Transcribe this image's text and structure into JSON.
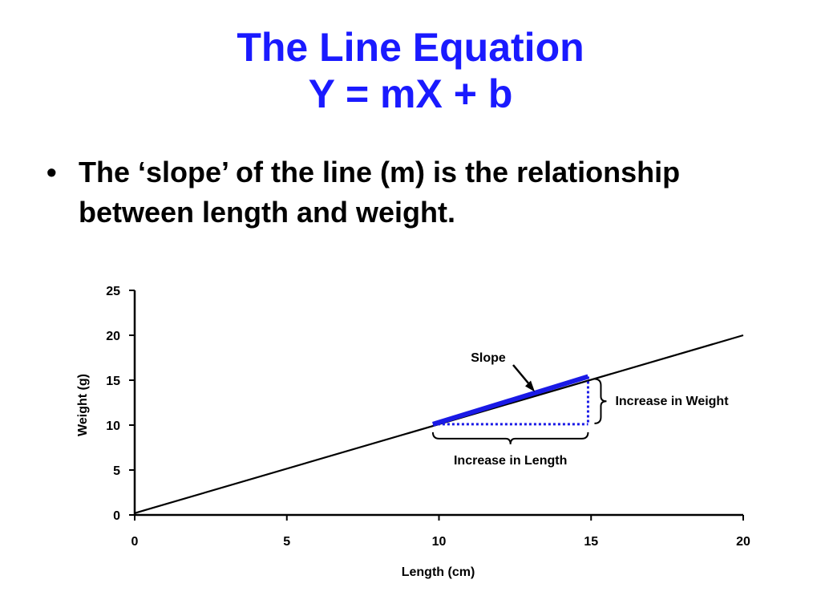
{
  "slide": {
    "title_line1": "The Line Equation",
    "title_line2": "Y = mX + b",
    "bullet_symbol": "•",
    "bullet_text": "The ‘slope’ of the line (m) is the relationship between length and weight."
  },
  "colors": {
    "title": "#1a1aff",
    "slope_segment": "#1a1ae6",
    "line": "#000000"
  },
  "chart_data": {
    "type": "line",
    "title": "",
    "xlabel": "Length (cm)",
    "ylabel": "Weight (g)",
    "xlim": [
      0,
      20
    ],
    "ylim": [
      0,
      25
    ],
    "xticks": [
      0,
      5,
      10,
      15,
      20
    ],
    "yticks": [
      0,
      5,
      10,
      15,
      20,
      25
    ],
    "grid": false,
    "series": [
      {
        "x": [
          0,
          20
        ],
        "y": [
          0.2,
          20
        ]
      }
    ],
    "slope_segment": {
      "x": [
        9.8,
        14.9
      ],
      "y": [
        10.1,
        15.4
      ]
    },
    "rise_run": {
      "run_from_x": 9.8,
      "run_to_x": 14.9,
      "base_y": 10.1,
      "rise_to_y": 15.4
    },
    "annotations": {
      "slope": "Slope",
      "increase_in_weight": "Increase in Weight",
      "increase_in_length": "Increase in Length"
    }
  }
}
